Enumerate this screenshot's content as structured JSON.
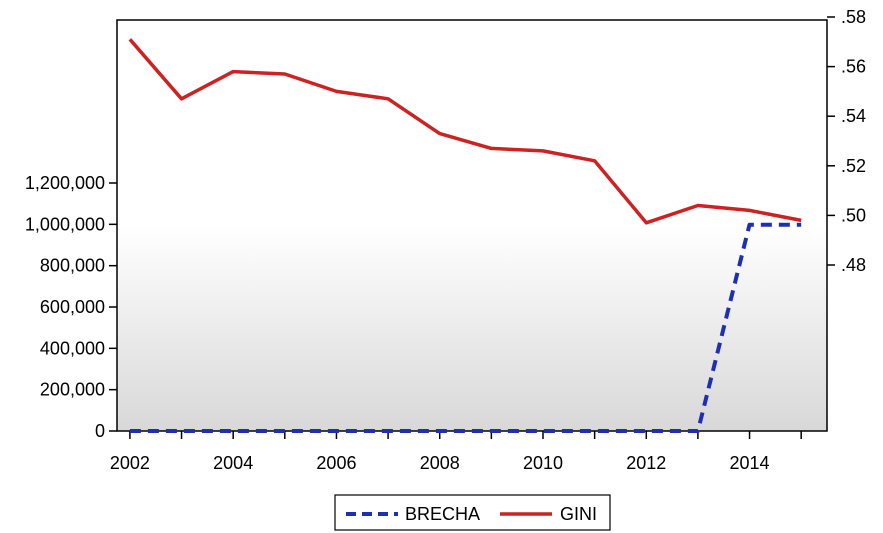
{
  "chart_data": {
    "type": "line",
    "x": [
      2002,
      2003,
      2004,
      2005,
      2006,
      2007,
      2008,
      2009,
      2010,
      2011,
      2012,
      2013,
      2014,
      2015
    ],
    "x_ticks": [
      2002,
      2004,
      2006,
      2008,
      2010,
      2012,
      2014
    ],
    "x_range": [
      2001.75,
      2015.5
    ],
    "y_left": {
      "ylim": [
        0,
        1200000
      ],
      "ticks": [
        0,
        200000,
        400000,
        600000,
        800000,
        1000000,
        1200000
      ],
      "tick_labels": [
        "0",
        "200,000",
        "400,000",
        "600,000",
        "800,000",
        "1,000,000",
        "1,200,000"
      ]
    },
    "y_right": {
      "ylim": [
        0.48,
        0.58
      ],
      "ticks": [
        0.48,
        0.5,
        0.52,
        0.54,
        0.56,
        0.58
      ],
      "tick_labels": [
        ".48",
        ".50",
        ".52",
        ".54",
        ".56",
        ".58"
      ]
    },
    "series": [
      {
        "name": "BRECHA",
        "axis": "left",
        "style": "dashed",
        "color": "#1e2fb4",
        "values": [
          0,
          0,
          0,
          0,
          0,
          0,
          0,
          0,
          0,
          0,
          0,
          0,
          998000,
          998000
        ]
      },
      {
        "name": "GINI",
        "axis": "right",
        "style": "solid",
        "color": "#cc2222",
        "values": [
          0.571,
          0.547,
          0.558,
          0.557,
          0.55,
          0.547,
          0.533,
          0.527,
          0.526,
          0.522,
          0.497,
          0.504,
          0.502,
          0.498
        ]
      }
    ],
    "legend": "bottom-center",
    "grid": false,
    "background": "gradient white to light gray"
  }
}
